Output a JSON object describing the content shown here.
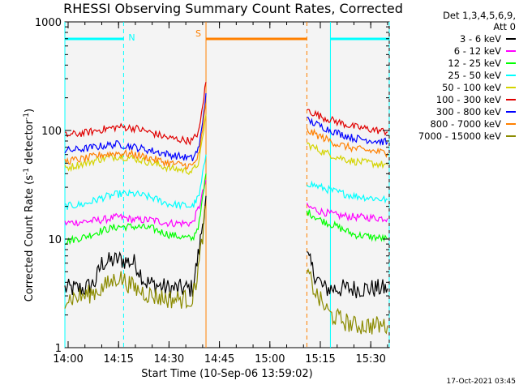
{
  "title": "RHESSI Observing Summary Count Rates, Corrected",
  "timestamp": "17-Oct-2021 03:45",
  "legend": {
    "header1": "Det 1,3,4,5,6,9,",
    "header2": "Att 0",
    "entries": [
      {
        "label": "3 - 6 keV",
        "color": "#000000"
      },
      {
        "label": "6 - 12 keV",
        "color": "#ff00ff"
      },
      {
        "label": "12 - 25 keV",
        "color": "#00ff00"
      },
      {
        "label": "25 - 50 keV",
        "color": "#00ffff"
      },
      {
        "label": "50 - 100 keV",
        "color": "#d4d400"
      },
      {
        "label": "100 - 300 keV",
        "color": "#e00000"
      },
      {
        "label": "300 - 800 keV",
        "color": "#0000ff"
      },
      {
        "label": "800 - 7000 keV",
        "color": "#ff8000"
      },
      {
        "label": "7000 - 15000 keV",
        "color": "#8b8b00"
      }
    ]
  },
  "chart_data": {
    "type": "line",
    "title": "RHESSI Observing Summary Count Rates, Corrected",
    "xlabel": "Start Time (10-Sep-06 13:59:02)",
    "ylabel": "Corrected Count Rate (s-1 detector-1)",
    "yscale": "log",
    "xlim": [
      "13:59:02",
      "15:35:30"
    ],
    "ylim": [
      1,
      1000
    ],
    "xticks": [
      "14:00",
      "14:15",
      "14:30",
      "14:45",
      "15:00",
      "15:15",
      "15:30"
    ],
    "yticks": [
      1,
      10,
      100,
      1000
    ],
    "grid": false,
    "legend_position": "right",
    "flags": [
      {
        "label": "N",
        "color": "#00ffff",
        "start": "13:59:02",
        "end": "14:16:30"
      },
      {
        "label": "N",
        "color": "#00ffff",
        "start": "15:18:00",
        "end": "15:35:30"
      },
      {
        "label": "S",
        "color": "#ff8000",
        "start": "14:41:00",
        "end": "15:11:00"
      }
    ],
    "vertical_markers": [
      {
        "time": "13:59:02",
        "color": "#00ffff",
        "style": "solid"
      },
      {
        "time": "14:16:30",
        "color": "#00ffff",
        "style": "dashed"
      },
      {
        "time": "14:41:00",
        "color": "#ff8000",
        "style": "solid"
      },
      {
        "time": "15:11:00",
        "color": "#ff8000",
        "style": "dashed"
      },
      {
        "time": "15:18:00",
        "color": "#00ffff",
        "style": "solid"
      },
      {
        "time": "15:35:30",
        "color": "#00ffff",
        "style": "dashed"
      }
    ],
    "series": [
      {
        "name": "3 - 6 keV",
        "color": "#000000",
        "segments": [
          [
            [
              "13:59:02",
              3.5
            ],
            [
              "14:05",
              3.5
            ],
            [
              "14:08",
              4
            ],
            [
              "14:10",
              6
            ],
            [
              "14:15",
              6.5
            ],
            [
              "14:20",
              6
            ],
            [
              "14:23",
              4
            ],
            [
              "14:30",
              3.5
            ],
            [
              "14:37",
              3.5
            ],
            [
              "14:39",
              8
            ],
            [
              "14:41",
              25
            ]
          ],
          [
            [
              "15:11",
              7
            ],
            [
              "15:13",
              5
            ],
            [
              "15:16",
              3.5
            ],
            [
              "15:25",
              3.5
            ],
            [
              "15:35",
              3.5
            ]
          ]
        ]
      },
      {
        "name": "6 - 12 keV",
        "color": "#ff00ff",
        "segments": [
          [
            [
              "13:59:02",
              14
            ],
            [
              "14:05",
              14.5
            ],
            [
              "14:10",
              15
            ],
            [
              "14:15",
              16
            ],
            [
              "14:20",
              15
            ],
            [
              "14:25",
              15
            ],
            [
              "14:30",
              14
            ],
            [
              "14:37",
              14
            ],
            [
              "14:39",
              20
            ],
            [
              "14:41",
              35
            ]
          ],
          [
            [
              "15:11",
              20
            ],
            [
              "15:15",
              18
            ],
            [
              "15:20",
              16.5
            ],
            [
              "15:25",
              16
            ],
            [
              "15:35",
              15.5
            ]
          ]
        ]
      },
      {
        "name": "12 - 25 keV",
        "color": "#00ff00",
        "segments": [
          [
            [
              "13:59:02",
              9.5
            ],
            [
              "14:05",
              10.5
            ],
            [
              "14:10",
              12
            ],
            [
              "14:15",
              13
            ],
            [
              "14:20",
              13
            ],
            [
              "14:25",
              12.5
            ],
            [
              "14:30",
              11
            ],
            [
              "14:37",
              10
            ],
            [
              "14:39",
              14
            ],
            [
              "14:41",
              40
            ]
          ],
          [
            [
              "15:11",
              18
            ],
            [
              "15:15",
              15
            ],
            [
              "15:20",
              13
            ],
            [
              "15:25",
              11
            ],
            [
              "15:35",
              10
            ]
          ]
        ]
      },
      {
        "name": "25 - 50 keV",
        "color": "#00ffff",
        "segments": [
          [
            [
              "13:59:02",
              20
            ],
            [
              "14:05",
              21
            ],
            [
              "14:10",
              24
            ],
            [
              "14:15",
              26
            ],
            [
              "14:20",
              26
            ],
            [
              "14:25",
              24
            ],
            [
              "14:30",
              21
            ],
            [
              "14:37",
              20
            ],
            [
              "14:39",
              25
            ],
            [
              "14:41",
              60
            ]
          ],
          [
            [
              "15:11",
              33
            ],
            [
              "15:15",
              30
            ],
            [
              "15:20",
              27
            ],
            [
              "15:25",
              25
            ],
            [
              "15:35",
              23
            ]
          ]
        ]
      },
      {
        "name": "50 - 100 keV",
        "color": "#d4d400",
        "segments": [
          [
            [
              "13:59:02",
              45
            ],
            [
              "14:05",
              50
            ],
            [
              "14:10",
              55
            ],
            [
              "14:15",
              58
            ],
            [
              "14:20",
              55
            ],
            [
              "14:25",
              50
            ],
            [
              "14:30",
              45
            ],
            [
              "14:37",
              42
            ],
            [
              "14:39",
              52
            ],
            [
              "14:41",
              140
            ]
          ],
          [
            [
              "15:11",
              75
            ],
            [
              "15:15",
              65
            ],
            [
              "15:20",
              57
            ],
            [
              "15:25",
              52
            ],
            [
              "15:35",
              48
            ]
          ]
        ]
      },
      {
        "name": "100 - 300 keV",
        "color": "#e00000",
        "segments": [
          [
            [
              "13:59:02",
              90
            ],
            [
              "14:05",
              95
            ],
            [
              "14:10",
              102
            ],
            [
              "14:15",
              108
            ],
            [
              "14:20",
              105
            ],
            [
              "14:25",
              95
            ],
            [
              "14:30",
              85
            ],
            [
              "14:37",
              80
            ],
            [
              "14:39",
              100
            ],
            [
              "14:40",
              170
            ],
            [
              "14:41",
              280
            ]
          ],
          [
            [
              "15:11",
              155
            ],
            [
              "15:15",
              135
            ],
            [
              "15:20",
              120
            ],
            [
              "15:25",
              108
            ],
            [
              "15:35",
              97
            ]
          ]
        ]
      },
      {
        "name": "300 - 800 keV",
        "color": "#0000ff",
        "segments": [
          [
            [
              "13:59:02",
              65
            ],
            [
              "14:05",
              68
            ],
            [
              "14:10",
              72
            ],
            [
              "14:15",
              75
            ],
            [
              "14:20",
              70
            ],
            [
              "14:25",
              65
            ],
            [
              "14:30",
              60
            ],
            [
              "14:37",
              55
            ],
            [
              "14:39",
              70
            ],
            [
              "14:41",
              220
            ]
          ],
          [
            [
              "15:11",
              125
            ],
            [
              "15:15",
              110
            ],
            [
              "15:20",
              95
            ],
            [
              "15:25",
              85
            ],
            [
              "15:35",
              78
            ]
          ]
        ]
      },
      {
        "name": "800 - 7000 keV",
        "color": "#ff8000",
        "segments": [
          [
            [
              "13:59:02",
              52
            ],
            [
              "14:05",
              55
            ],
            [
              "14:10",
              60
            ],
            [
              "14:15",
              62
            ],
            [
              "14:20",
              60
            ],
            [
              "14:25",
              55
            ],
            [
              "14:30",
              50
            ],
            [
              "14:37",
              47
            ],
            [
              "14:39",
              60
            ],
            [
              "14:41",
              180
            ]
          ],
          [
            [
              "15:11",
              100
            ],
            [
              "15:15",
              88
            ],
            [
              "15:20",
              75
            ],
            [
              "15:25",
              68
            ],
            [
              "15:35",
              62
            ]
          ]
        ]
      },
      {
        "name": "7000 - 15000 keV",
        "color": "#8b8b00",
        "segments": [
          [
            [
              "13:59:02",
              2.8
            ],
            [
              "14:05",
              3
            ],
            [
              "14:10",
              3.5
            ],
            [
              "14:15",
              4.5
            ],
            [
              "14:20",
              3.5
            ],
            [
              "14:25",
              3
            ],
            [
              "14:30",
              2.8
            ],
            [
              "14:37",
              2.8
            ],
            [
              "14:39",
              6
            ],
            [
              "14:41",
              20
            ]
          ],
          [
            [
              "15:11",
              5
            ],
            [
              "15:14",
              3
            ],
            [
              "15:18",
              2
            ],
            [
              "15:25",
              1.6
            ],
            [
              "15:35",
              1.6
            ]
          ]
        ]
      }
    ]
  }
}
